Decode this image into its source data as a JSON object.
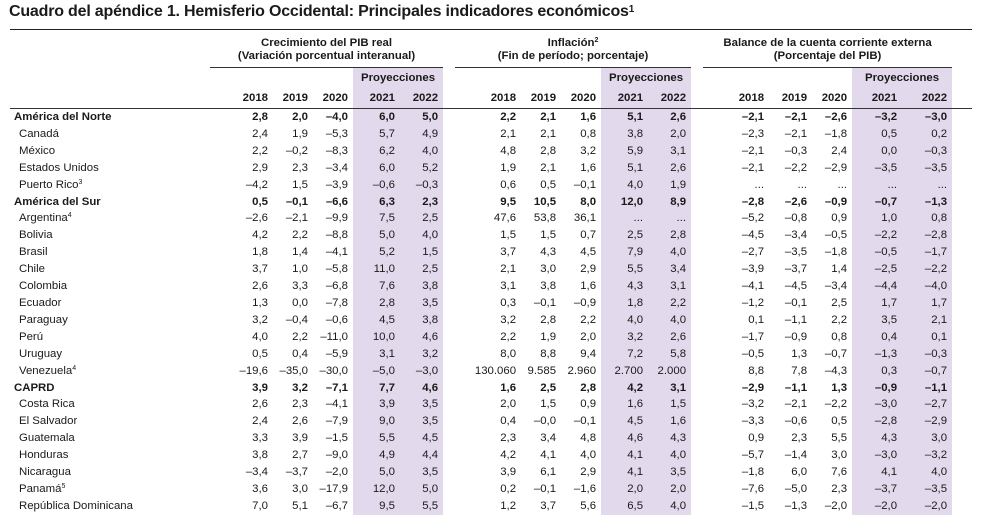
{
  "title": "Cuadro del apéndice 1. Hemisferio Occidental: Principales indicadores económicos",
  "title_note": "1",
  "groups": [
    {
      "name": "Crecimiento del PIB real",
      "sub": "(Variación porcentual interanual)",
      "note": ""
    },
    {
      "name": "Inflación",
      "sub": "(Fin de período; porcentaje)",
      "note": "2"
    },
    {
      "name": "Balance de la cuenta corriente externa",
      "sub": "(Porcentaje del PIB)",
      "note": ""
    }
  ],
  "proj_label": "Proyecciones",
  "years": [
    "2018",
    "2019",
    "2020",
    "2021",
    "2022"
  ],
  "rows": [
    {
      "name": "América del Norte",
      "note": "",
      "bold": true,
      "v": [
        "2,8",
        "2,0",
        "–4,0",
        "6,0",
        "5,0",
        "2,2",
        "2,1",
        "1,6",
        "5,1",
        "2,6",
        "–2,1",
        "–2,1",
        "–2,6",
        "–3,2",
        "–3,0"
      ]
    },
    {
      "name": "Canadá",
      "note": "",
      "bold": false,
      "v": [
        "2,4",
        "1,9",
        "–5,3",
        "5,7",
        "4,9",
        "2,1",
        "2,1",
        "0,8",
        "3,8",
        "2,0",
        "–2,3",
        "–2,1",
        "–1,8",
        "0,5",
        "0,2"
      ]
    },
    {
      "name": "México",
      "note": "",
      "bold": false,
      "v": [
        "2,2",
        "–0,2",
        "–8,3",
        "6,2",
        "4,0",
        "4,8",
        "2,8",
        "3,2",
        "5,9",
        "3,1",
        "–2,1",
        "–0,3",
        "2,4",
        "0,0",
        "–0,3"
      ]
    },
    {
      "name": "Estados Unidos",
      "note": "",
      "bold": false,
      "v": [
        "2,9",
        "2,3",
        "–3,4",
        "6,0",
        "5,2",
        "1,9",
        "2,1",
        "1,6",
        "5,1",
        "2,6",
        "–2,1",
        "–2,2",
        "–2,9",
        "–3,5",
        "–3,5"
      ]
    },
    {
      "name": "Puerto Rico",
      "note": "3",
      "bold": false,
      "v": [
        "–4,2",
        "1,5",
        "–3,9",
        "–0,6",
        "–0,3",
        "0,6",
        "0,5",
        "–0,1",
        "4,0",
        "1,9",
        "...",
        "...",
        "...",
        "...",
        "..."
      ]
    },
    {
      "name": "América del Sur",
      "note": "",
      "bold": true,
      "v": [
        "0,5",
        "–0,1",
        "–6,6",
        "6,3",
        "2,3",
        "9,5",
        "10,5",
        "8,0",
        "12,0",
        "8,9",
        "–2,8",
        "–2,6",
        "–0,9",
        "–0,7",
        "–1,3"
      ]
    },
    {
      "name": "Argentina",
      "note": "4",
      "bold": false,
      "v": [
        "–2,6",
        "–2,1",
        "–9,9",
        "7,5",
        "2,5",
        "47,6",
        "53,8",
        "36,1",
        "...",
        "...",
        "–5,2",
        "–0,8",
        "0,9",
        "1,0",
        "0,8"
      ]
    },
    {
      "name": "Bolivia",
      "note": "",
      "bold": false,
      "v": [
        "4,2",
        "2,2",
        "–8,8",
        "5,0",
        "4,0",
        "1,5",
        "1,5",
        "0,7",
        "2,5",
        "2,8",
        "–4,5",
        "–3,4",
        "–0,5",
        "–2,2",
        "–2,8"
      ]
    },
    {
      "name": "Brasil",
      "note": "",
      "bold": false,
      "v": [
        "1,8",
        "1,4",
        "–4,1",
        "5,2",
        "1,5",
        "3,7",
        "4,3",
        "4,5",
        "7,9",
        "4,0",
        "–2,7",
        "–3,5",
        "–1,8",
        "–0,5",
        "–1,7"
      ]
    },
    {
      "name": "Chile",
      "note": "",
      "bold": false,
      "v": [
        "3,7",
        "1,0",
        "–5,8",
        "11,0",
        "2,5",
        "2,1",
        "3,0",
        "2,9",
        "5,5",
        "3,4",
        "–3,9",
        "–3,7",
        "1,4",
        "–2,5",
        "–2,2"
      ]
    },
    {
      "name": "Colombia",
      "note": "",
      "bold": false,
      "v": [
        "2,6",
        "3,3",
        "–6,8",
        "7,6",
        "3,8",
        "3,1",
        "3,8",
        "1,6",
        "4,3",
        "3,1",
        "–4,1",
        "–4,5",
        "–3,4",
        "–4,4",
        "–4,0"
      ]
    },
    {
      "name": "Ecuador",
      "note": "",
      "bold": false,
      "v": [
        "1,3",
        "0,0",
        "–7,8",
        "2,8",
        "3,5",
        "0,3",
        "–0,1",
        "–0,9",
        "1,8",
        "2,2",
        "–1,2",
        "–0,1",
        "2,5",
        "1,7",
        "1,7"
      ]
    },
    {
      "name": "Paraguay",
      "note": "",
      "bold": false,
      "v": [
        "3,2",
        "–0,4",
        "–0,6",
        "4,5",
        "3,8",
        "3,2",
        "2,8",
        "2,2",
        "4,0",
        "4,0",
        "0,1",
        "–1,1",
        "2,2",
        "3,5",
        "2,1"
      ]
    },
    {
      "name": "Perú",
      "note": "",
      "bold": false,
      "v": [
        "4,0",
        "2,2",
        "–11,0",
        "10,0",
        "4,6",
        "2,2",
        "1,9",
        "2,0",
        "3,2",
        "2,6",
        "–1,7",
        "–0,9",
        "0,8",
        "0,4",
        "0,1"
      ]
    },
    {
      "name": "Uruguay",
      "note": "",
      "bold": false,
      "v": [
        "0,5",
        "0,4",
        "–5,9",
        "3,1",
        "3,2",
        "8,0",
        "8,8",
        "9,4",
        "7,2",
        "5,8",
        "–0,5",
        "1,3",
        "–0,7",
        "–1,3",
        "–0,3"
      ]
    },
    {
      "name": "Venezuela",
      "note": "4",
      "bold": false,
      "v": [
        "–19,6",
        "–35,0",
        "–30,0",
        "–5,0",
        "–3,0",
        "130.060",
        "9.585",
        "2.960",
        "2.700",
        "2.000",
        "8,8",
        "7,8",
        "–4,3",
        "0,3",
        "–0,7"
      ]
    },
    {
      "name": "CAPRD",
      "note": "",
      "bold": true,
      "v": [
        "3,9",
        "3,2",
        "–7,1",
        "7,7",
        "4,6",
        "1,6",
        "2,5",
        "2,8",
        "4,2",
        "3,1",
        "–2,9",
        "–1,1",
        "1,3",
        "–0,9",
        "–1,1"
      ]
    },
    {
      "name": "Costa Rica",
      "note": "",
      "bold": false,
      "v": [
        "2,6",
        "2,3",
        "–4,1",
        "3,9",
        "3,5",
        "2,0",
        "1,5",
        "0,9",
        "1,6",
        "1,5",
        "–3,2",
        "–2,1",
        "–2,2",
        "–3,0",
        "–2,7"
      ]
    },
    {
      "name": "El Salvador",
      "note": "",
      "bold": false,
      "v": [
        "2,4",
        "2,6",
        "–7,9",
        "9,0",
        "3,5",
        "0,4",
        "–0,0",
        "–0,1",
        "4,5",
        "1,6",
        "–3,3",
        "–0,6",
        "0,5",
        "–2,8",
        "–2,9"
      ]
    },
    {
      "name": "Guatemala",
      "note": "",
      "bold": false,
      "v": [
        "3,3",
        "3,9",
        "–1,5",
        "5,5",
        "4,5",
        "2,3",
        "3,4",
        "4,8",
        "4,6",
        "4,3",
        "0,9",
        "2,3",
        "5,5",
        "4,3",
        "3,0"
      ]
    },
    {
      "name": "Honduras",
      "note": "",
      "bold": false,
      "v": [
        "3,8",
        "2,7",
        "–9,0",
        "4,9",
        "4,4",
        "4,2",
        "4,1",
        "4,0",
        "4,1",
        "4,0",
        "–5,7",
        "–1,4",
        "3,0",
        "–3,0",
        "–3,2"
      ]
    },
    {
      "name": "Nicaragua",
      "note": "",
      "bold": false,
      "v": [
        "–3,4",
        "–3,7",
        "–2,0",
        "5,0",
        "3,5",
        "3,9",
        "6,1",
        "2,9",
        "4,1",
        "3,5",
        "–1,8",
        "6,0",
        "7,6",
        "4,1",
        "4,0"
      ]
    },
    {
      "name": "Panamá",
      "note": "5",
      "bold": false,
      "v": [
        "3,6",
        "3,0",
        "–17,9",
        "12,0",
        "5,0",
        "0,2",
        "–0,1",
        "–1,6",
        "2,0",
        "2,0",
        "–7,6",
        "–5,0",
        "2,3",
        "–3,7",
        "–3,5"
      ]
    },
    {
      "name": "República Dominicana",
      "note": "",
      "bold": false,
      "v": [
        "7,0",
        "5,1",
        "–6,7",
        "9,5",
        "5,5",
        "1,2",
        "3,7",
        "5,6",
        "6,5",
        "4,0",
        "–1,5",
        "–1,3",
        "–2,0",
        "–2,0",
        "–2,0"
      ]
    }
  ]
}
